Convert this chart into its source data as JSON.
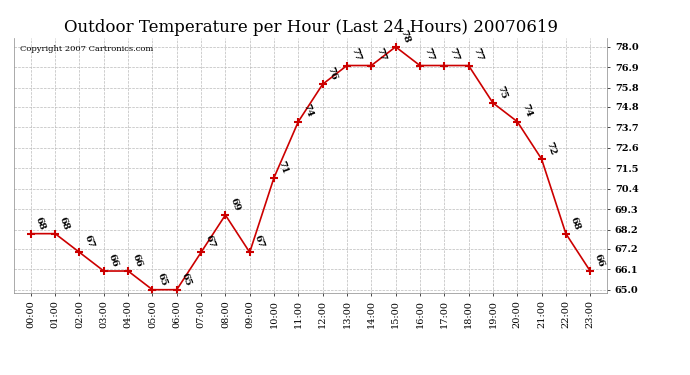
{
  "title": "Outdoor Temperature per Hour (Last 24 Hours) 20070619",
  "copyright": "Copyright 2007 Cartronics.com",
  "hours": [
    "00:00",
    "01:00",
    "02:00",
    "03:00",
    "04:00",
    "05:00",
    "06:00",
    "07:00",
    "08:00",
    "09:00",
    "10:00",
    "11:00",
    "12:00",
    "13:00",
    "14:00",
    "15:00",
    "16:00",
    "17:00",
    "18:00",
    "19:00",
    "20:00",
    "21:00",
    "22:00",
    "23:00"
  ],
  "temps": [
    68,
    68,
    67,
    66,
    66,
    65,
    65,
    67,
    69,
    67,
    71,
    74,
    76,
    77,
    77,
    78,
    77,
    77,
    77,
    75,
    74,
    72,
    68,
    66
  ],
  "ylim": [
    65.0,
    78.0
  ],
  "yticks": [
    65.0,
    66.1,
    67.2,
    68.2,
    69.3,
    70.4,
    71.5,
    72.6,
    73.7,
    74.8,
    75.8,
    76.9,
    78.0
  ],
  "line_color": "#cc0000",
  "marker": "+",
  "marker_size": 6,
  "marker_color": "#cc0000",
  "bg_color": "#ffffff",
  "grid_color": "#bbbbbb",
  "title_fontsize": 12,
  "label_fontsize": 7,
  "annot_fontsize": 7,
  "copyright_fontsize": 6
}
